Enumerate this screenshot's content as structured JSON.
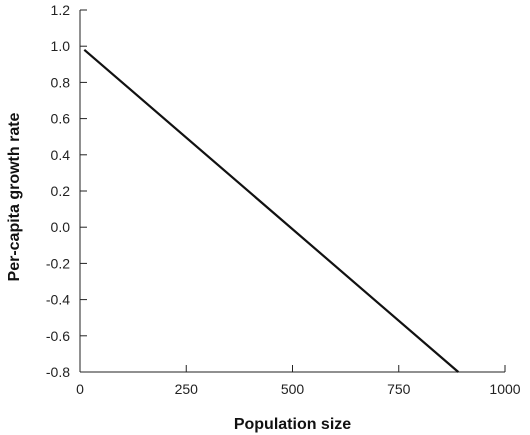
{
  "chart_data": {
    "type": "line",
    "title": "",
    "xlabel": "Population size",
    "ylabel": "Per-capita growth rate",
    "xlim": [
      0,
      1000
    ],
    "ylim": [
      -0.8,
      1.2
    ],
    "x_ticks": [
      0,
      250,
      500,
      750,
      1000
    ],
    "x_tick_labels": [
      "0",
      "250",
      "500",
      "750",
      "1000"
    ],
    "y_ticks": [
      -0.8,
      -0.6,
      -0.4,
      -0.2,
      0.0,
      0.2,
      0.4,
      0.6,
      0.8,
      1.0,
      1.2
    ],
    "y_tick_labels": [
      "-0.8",
      "-0.6",
      "-0.4",
      "-0.2",
      "0.0",
      "0.2",
      "0.4",
      "0.6",
      "0.8",
      "1.0",
      "1.2"
    ],
    "grid": false,
    "series": [
      {
        "x": [
          10,
          890
        ],
        "y": [
          0.98,
          -0.8
        ]
      }
    ],
    "colors": {
      "line": "#111111",
      "axis": "#222222"
    }
  }
}
